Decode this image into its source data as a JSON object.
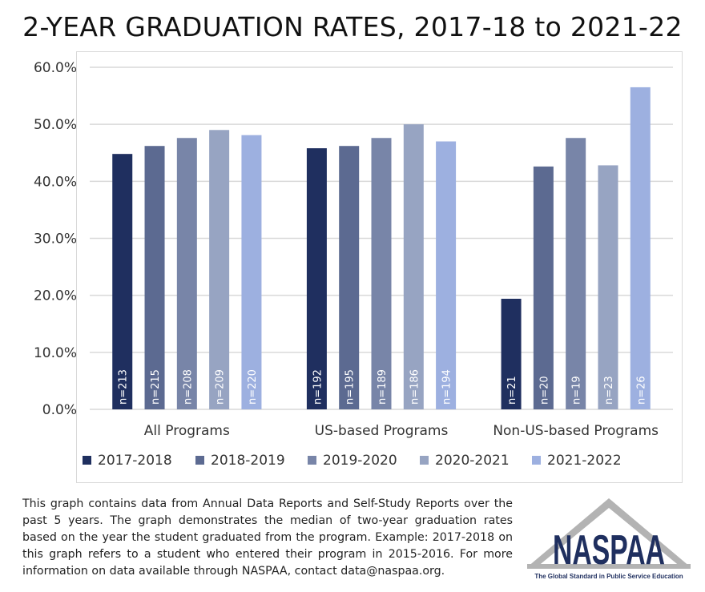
{
  "chart_data": {
    "type": "bar",
    "title": "2-YEAR GRADUATION RATES, 2017-18 to 2021-22",
    "categories": [
      "All Programs",
      "US-based Programs",
      "Non-US-based Programs"
    ],
    "ylim": [
      0,
      60
    ],
    "yticks": [
      "0.0%",
      "10.0%",
      "20.0%",
      "30.0%",
      "40.0%",
      "50.0%",
      "60.0%"
    ],
    "grid": true,
    "legend_position": "bottom",
    "series": [
      {
        "name": "2017-2018",
        "color": "#1f2f5f",
        "values": [
          44.8,
          45.8,
          19.4
        ],
        "n_labels": [
          "n=213",
          "n=192",
          "n=21"
        ]
      },
      {
        "name": "2018-2019",
        "color": "#5c6a91",
        "values": [
          46.2,
          46.2,
          42.6
        ],
        "n_labels": [
          "n=215",
          "n=195",
          "n=20"
        ]
      },
      {
        "name": "2019-2020",
        "color": "#7885a8",
        "values": [
          47.6,
          47.6,
          47.6
        ],
        "n_labels": [
          "n=208",
          "n=189",
          "n=19"
        ]
      },
      {
        "name": "2020-2021",
        "color": "#97a4c2",
        "values": [
          49.0,
          50.0,
          42.8
        ],
        "n_labels": [
          "n=209",
          "n=186",
          "n=23"
        ]
      },
      {
        "name": "2021-2022",
        "color": "#9db0e0",
        "values": [
          48.1,
          47.0,
          56.5
        ],
        "n_labels": [
          "n=220",
          "n=194",
          "n=26"
        ]
      }
    ]
  },
  "note": "This graph contains data from Annual Data Reports and Self-Study Reports over the past 5 years. The graph demonstrates the median of two-year graduation rates based on the year the student graduated from the program. Example: 2017-2018 on this graph refers to a student who entered their program in 2015-2016. For more information on data available through NASPAA, contact data@naspaa.org.",
  "logo": {
    "name": "NASPAA",
    "tagline": "The Global Standard in Public Service Education"
  }
}
